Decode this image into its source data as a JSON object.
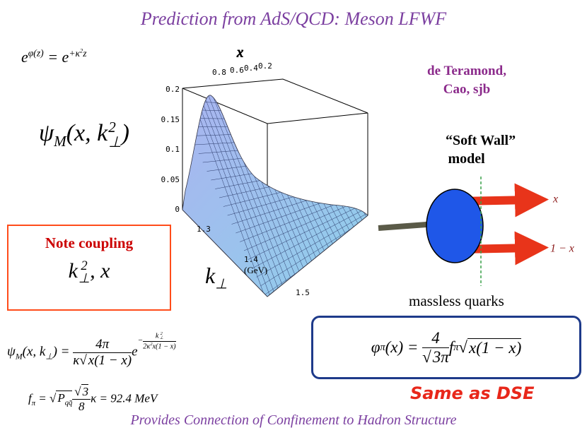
{
  "title": "Prediction from AdS/QCD: Meson LFWF",
  "formula_top": [
    "e",
    "φ(z)",
    " = e",
    "+κ",
    "2",
    "z"
  ],
  "authors": [
    "de Teramond,",
    "Cao, sjb"
  ],
  "psi_label": [
    "ψ",
    "M",
    "(x, k",
    "2",
    "⊥",
    ")"
  ],
  "plot": {
    "x_label": "x",
    "x_ticks": [
      "0.8",
      "0.6",
      "0.4",
      "0.2"
    ],
    "z_ticks": [
      "0.2",
      "0.15",
      "0.1",
      "0.05",
      "0"
    ],
    "k_ticks": [
      "1.3",
      "1.4",
      "1.5"
    ],
    "k_label": [
      "k",
      "⊥"
    ],
    "k_unit": "(GeV)"
  },
  "model": {
    "title": [
      "“Soft Wall”",
      "model"
    ],
    "quark_labels": [
      "x",
      "1 − x"
    ],
    "caption": "massless quarks"
  },
  "note": {
    "title": "Note coupling",
    "formula": [
      "k",
      "2",
      "⊥",
      ", x"
    ]
  },
  "lfwf": {
    "lhs": [
      "ψ",
      "M",
      "(x, k",
      "⊥",
      ") ="
    ],
    "num": "4π",
    "den": [
      "κ",
      "√",
      "x(1 − x)"
    ],
    "exp_base": "e",
    "exp": [
      "−",
      "k",
      "2",
      "⊥",
      "2κ",
      "2",
      "x(1 − x)"
    ]
  },
  "pion_da": {
    "lhs": [
      "φ",
      "π",
      "(x) ="
    ],
    "num": "4",
    "den": [
      "√",
      "3",
      "π"
    ],
    "rhs": [
      "f",
      "π",
      "√",
      "x(1 − x)"
    ]
  },
  "fpi": [
    "f",
    "π",
    " = ",
    "√",
    "P",
    "qq̄",
    "√",
    "3",
    "8",
    "κ = 92.4 MeV"
  ],
  "same": "Same as DSE",
  "footer": "Provides Connection of Confinement to Hadron Structure"
}
